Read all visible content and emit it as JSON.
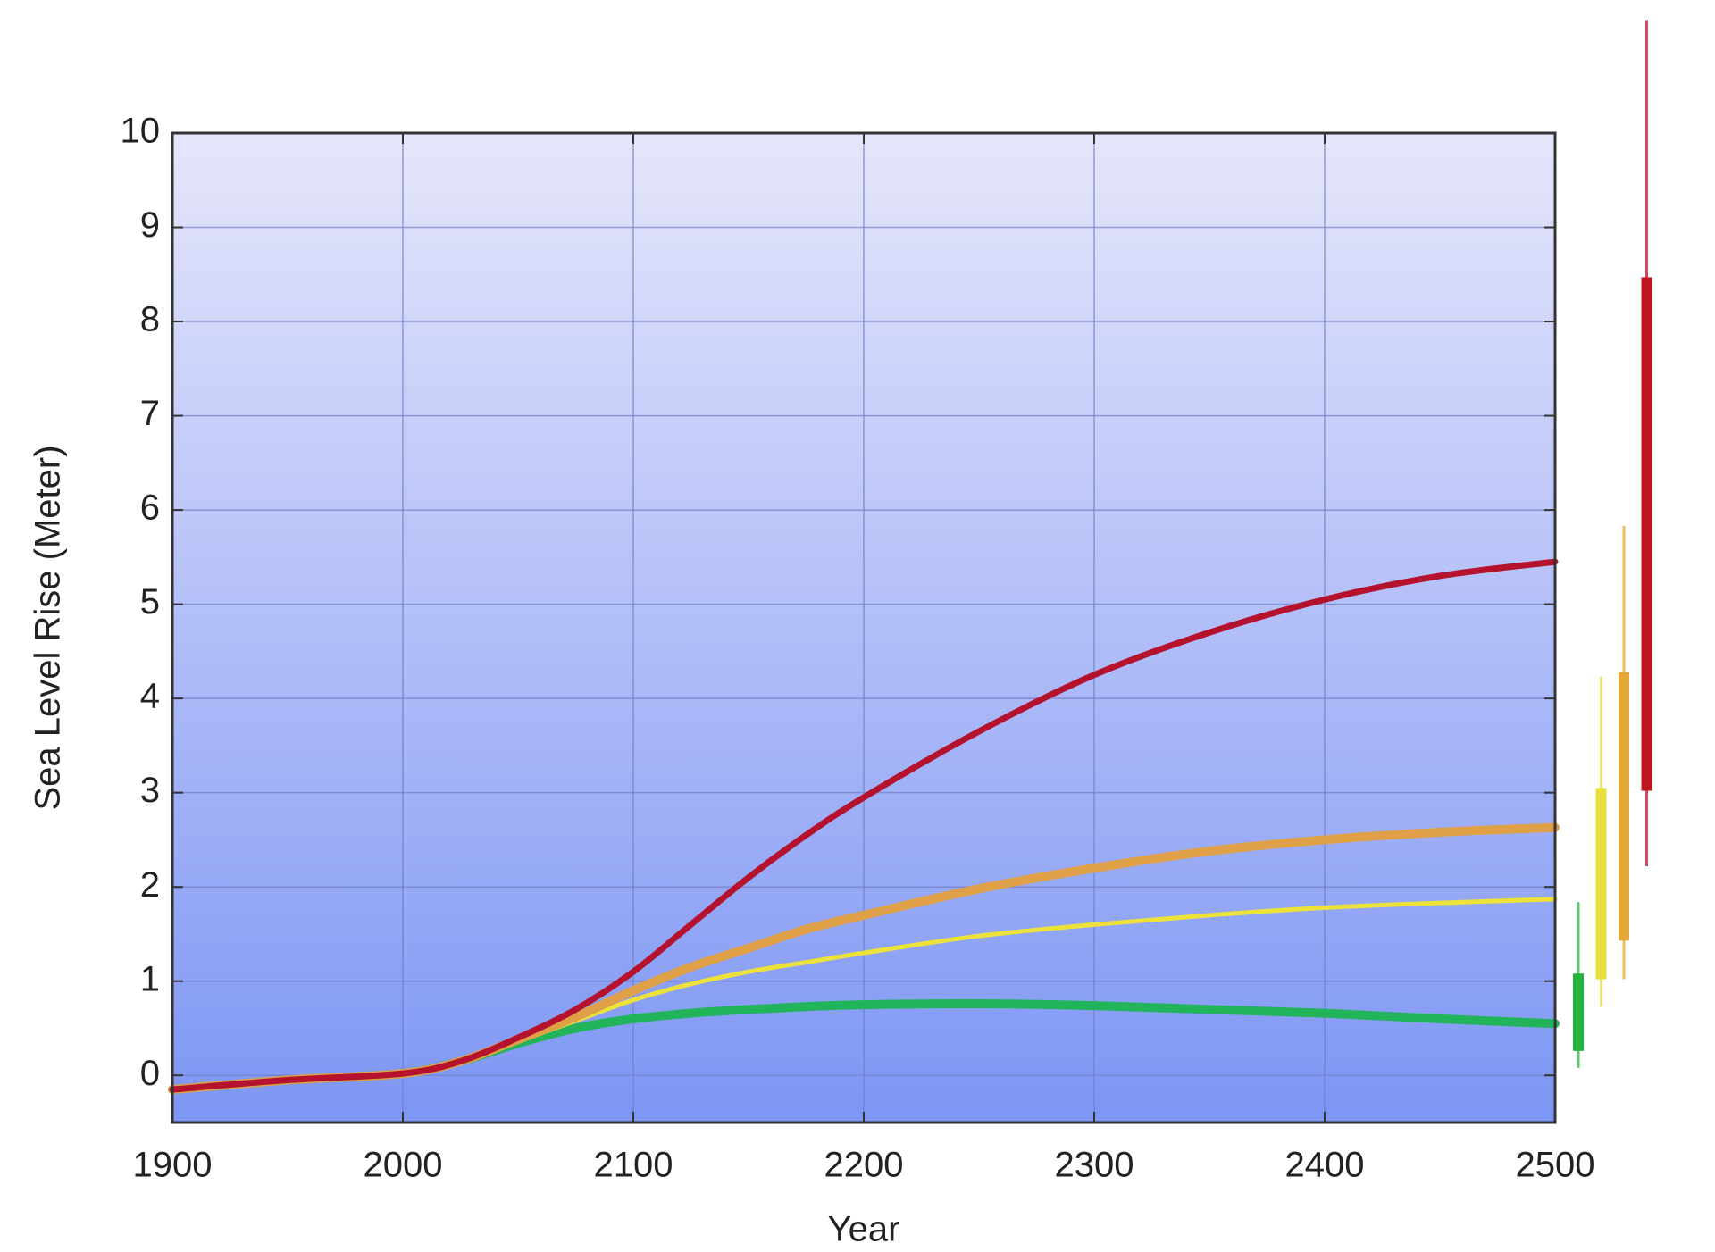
{
  "chart_data": {
    "type": "line",
    "x_label": "Year",
    "y_label": "Sea Level Rise (Meter)",
    "x": [
      1900,
      1950,
      2000,
      2025,
      2050,
      2075,
      2100,
      2125,
      2150,
      2175,
      2200,
      2250,
      2300,
      2350,
      2400,
      2450,
      2500
    ],
    "series": [
      {
        "color": "#b5122e",
        "values": [
          -0.15,
          -0.05,
          0.02,
          0.15,
          0.4,
          0.7,
          1.1,
          1.6,
          2.1,
          2.55,
          2.95,
          3.65,
          4.25,
          4.7,
          5.05,
          5.3,
          5.45
        ]
      },
      {
        "color": "#e0a048",
        "values": [
          -0.15,
          -0.05,
          0.02,
          0.15,
          0.38,
          0.62,
          0.9,
          1.15,
          1.35,
          1.55,
          1.7,
          1.98,
          2.2,
          2.38,
          2.5,
          2.58,
          2.63
        ]
      },
      {
        "color": "#ece23a",
        "values": [
          -0.15,
          -0.05,
          0.02,
          0.15,
          0.36,
          0.58,
          0.8,
          0.97,
          1.1,
          1.2,
          1.3,
          1.48,
          1.6,
          1.7,
          1.78,
          1.83,
          1.87
        ]
      },
      {
        "color": "#22b45a",
        "values": [
          -0.15,
          -0.05,
          0.02,
          0.15,
          0.34,
          0.5,
          0.6,
          0.66,
          0.7,
          0.73,
          0.75,
          0.76,
          0.74,
          0.7,
          0.66,
          0.6,
          0.55
        ]
      }
    ],
    "ranges": [
      {
        "color": "#22b43a",
        "whisker": [
          0.08,
          1.84
        ],
        "box": [
          0.26,
          1.08
        ]
      },
      {
        "color": "#e6e03a",
        "whisker": [
          0.73,
          4.23
        ],
        "box": [
          1.02,
          3.05
        ]
      },
      {
        "color": "#e4a838",
        "whisker": [
          1.02,
          5.83
        ],
        "box": [
          1.43,
          4.28
        ]
      },
      {
        "color": "#c0141e",
        "whisker": [
          2.22,
          11.2
        ],
        "box": [
          3.02,
          8.47
        ]
      }
    ],
    "xlim": [
      1900,
      2500
    ],
    "ylim": [
      -0.5,
      10
    ],
    "xticks": [
      1900,
      2000,
      2100,
      2200,
      2300,
      2400,
      2500
    ],
    "yticks": [
      0,
      1,
      2,
      3,
      4,
      5,
      6,
      7,
      8,
      9,
      10
    ],
    "grid": true
  }
}
